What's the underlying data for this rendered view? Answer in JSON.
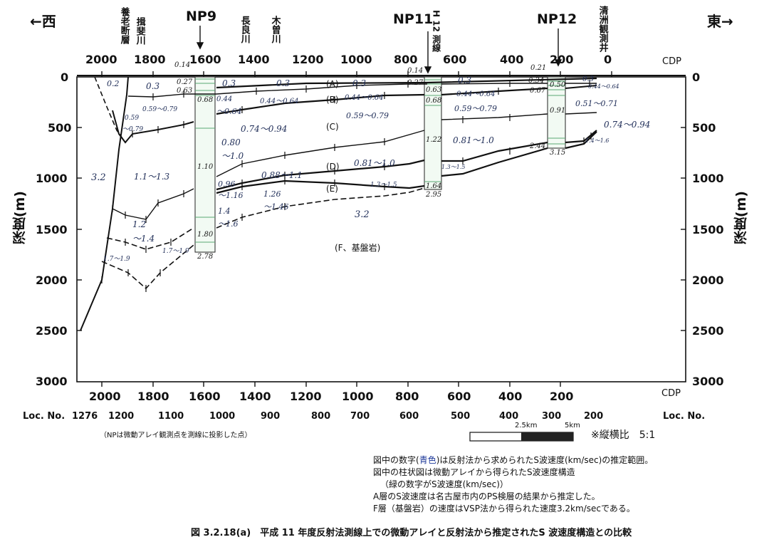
{
  "header": {
    "west": "←西",
    "east": "東→",
    "np9": "NP9",
    "np11": "NP11",
    "np12": "NP12",
    "cdp": "CDP",
    "h12": "H 12 測線",
    "rivers": [
      "養老断層",
      "揖斐川",
      "長良川",
      "木曽川",
      "清洲観測井"
    ]
  },
  "axes": {
    "cdp_ticks": [
      "2000",
      "1800",
      "1600",
      "1400",
      "1200",
      "1000",
      "800",
      "600",
      "400",
      "200",
      "0"
    ],
    "cdp_bottom_ticks": [
      "2000",
      "1800",
      "1600",
      "1400",
      "1200",
      "1000",
      "800",
      "600",
      "400",
      "200"
    ],
    "depth_ticks": [
      "0",
      "500",
      "1000",
      "1500",
      "2000",
      "2500",
      "3000"
    ],
    "depth_label": "深度(m)",
    "loc_label": "Loc. No.",
    "loc_first": "1276",
    "loc_ticks": [
      "1200",
      "1100",
      "1000",
      "900",
      "800",
      "700",
      "600",
      "500",
      "400",
      "300",
      "200"
    ]
  },
  "layers": [
    "(A)",
    "(B)",
    "(C)",
    "(D)",
    "(E)",
    "(F、基盤岩)"
  ],
  "velocities": {
    "west_32": "3.2",
    "bed_32": "3.2",
    "v02": "0.2",
    "a_03": "0.3",
    "a_03b": "0.3",
    "a_03c": "0.3",
    "a_03d": "0.3",
    "a_03e": "0.3",
    "a_03f": "0.3",
    "b_059_079_w": "0.59～0.79",
    "b_044_064": "0.44～0.64",
    "b_044_064b": "0.44～0.64",
    "b_044_064c": "0.44～0.64",
    "b_044": "0.44",
    "b_064": "～0.64",
    "b_044_064_e": "0.44～0.64",
    "c_059": "0.59",
    "c_079": "～0.79",
    "c_059_079": "0.59～0.79",
    "c_059_079b": "0.59～0.79",
    "c_074_094": "0.74～0.94",
    "c_080": "0.80",
    "c_10": "～1.0",
    "c_051_071": "0.51～0.71",
    "c_074_094e": "0.74～0.94",
    "d_11_13": "1.1～1.3",
    "d_096": "0.96",
    "d_116": "～1.16",
    "d_088_11": "0.88～1.1",
    "d_081_10": "0.81～1.0",
    "d_081_10b": "0.81～1.0",
    "e_126": "1.26",
    "e_146": "～1.46",
    "e_14": "1.4",
    "e_16": "～1.6",
    "e_13_15": "1.3～1.5",
    "e_13_15b": "1.3～1.5",
    "e_14_16": "1.4～1.6",
    "e_12": "1.2",
    "e_14b": "～1.4",
    "e_17_19": "1.7～1.9",
    "e_17_19b": "1.7～1.9"
  },
  "column_values": {
    "np9": [
      "0.14",
      "0.27",
      "0.63",
      "0.68",
      "1.10",
      "1.80",
      "2.78"
    ],
    "np11": [
      "0.14",
      "0.27",
      "0.63",
      "0.68",
      "1.22",
      "1.64",
      "2.95"
    ],
    "np12": [
      "0.21",
      "0.34",
      "0.50",
      "0.67",
      "0.91",
      "2.44",
      "3.15"
    ]
  },
  "scale": {
    "label_25": "2.5km",
    "label_5": "5km",
    "ratio": "※縦横比　5:1"
  },
  "notes": {
    "projection": "（NPは微動アレイ観測点を測線に投影した点）",
    "n1_a": "図中の数字(",
    "n1_blue": "青色",
    "n1_b": ")は反射法から求められたS波速度(km/sec)の推定範囲。",
    "n2": "図中の柱状図は微動アレイから得られたS波速度構造",
    "n3": "（緑の数字がS波速度(km/sec)）",
    "n4": "A層のS波速度は名古屋市内のPS検層の結果から推定した。",
    "n5": "F層（基盤岩）の速度はVSP法から得られた速度3.2km/secである。"
  },
  "caption": "図 3.2.18(a)　平成 11 年度反射法測線上での微動アレイと反射法から推定されたS 波速度構造との比較"
}
